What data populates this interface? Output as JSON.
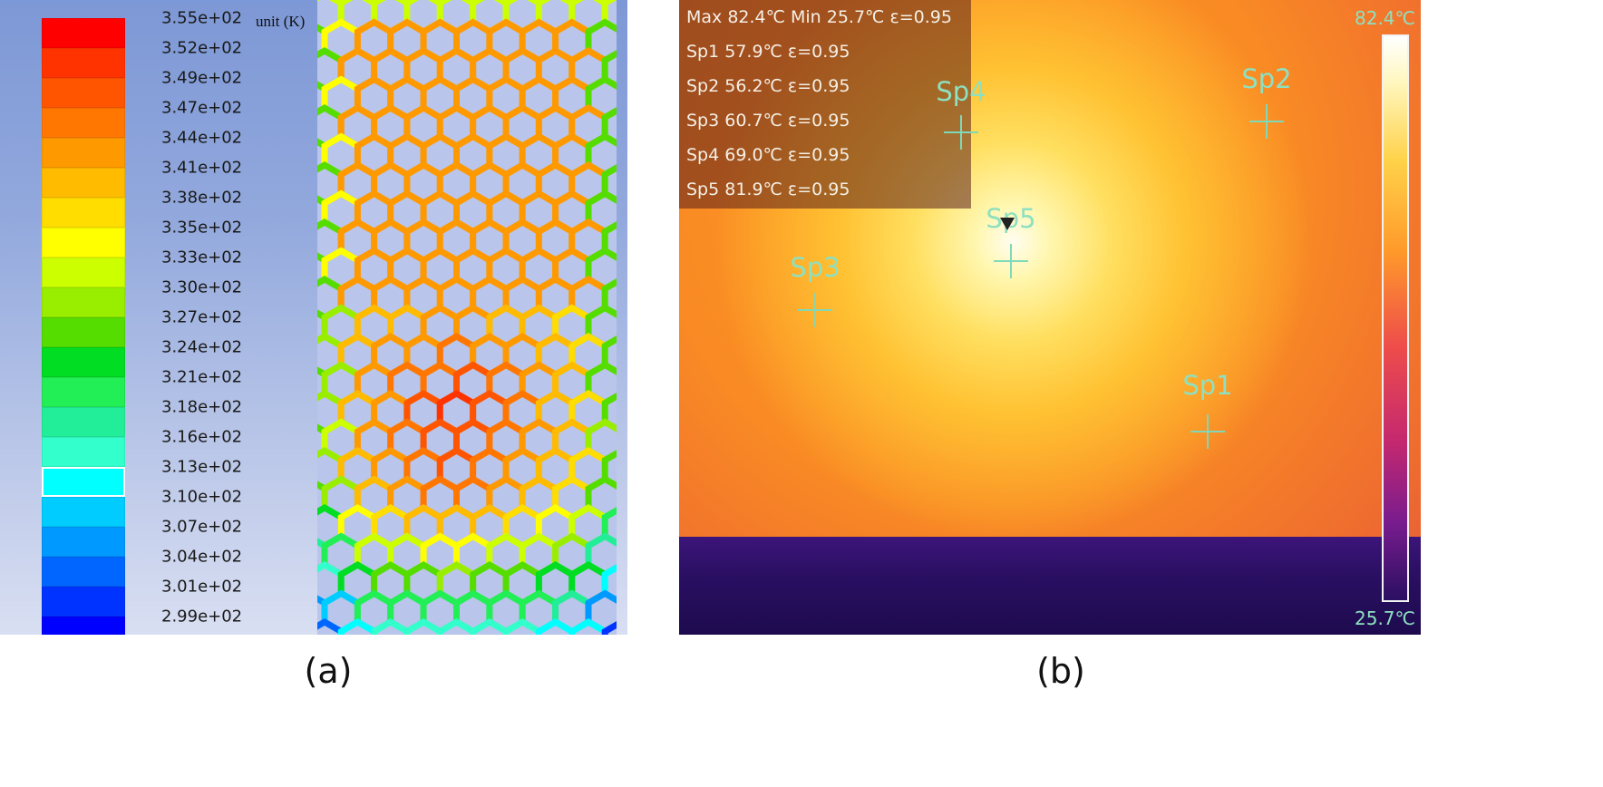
{
  "panel_a": {
    "unit_label": "unit (K)",
    "colorbar_labels": [
      "3.55e+02",
      "3.52e+02",
      "3.49e+02",
      "3.47e+02",
      "3.44e+02",
      "3.41e+02",
      "3.38e+02",
      "3.35e+02",
      "3.33e+02",
      "3.30e+02",
      "3.27e+02",
      "3.24e+02",
      "3.21e+02",
      "3.18e+02",
      "3.16e+02",
      "3.13e+02",
      "3.10e+02",
      "3.07e+02",
      "3.04e+02",
      "3.01e+02",
      "2.99e+02"
    ],
    "colorbar_colors": [
      "#ff0000",
      "#ff3300",
      "#ff5500",
      "#ff7700",
      "#ff9900",
      "#ffbb00",
      "#ffdd00",
      "#ffff00",
      "#ccff00",
      "#99ee00",
      "#55dd00",
      "#00dd22",
      "#22ee55",
      "#22ee99",
      "#33ffcc",
      "#00ffff",
      "#00ccff",
      "#0099ff",
      "#0066ff",
      "#0033ff",
      "#0000ff"
    ],
    "highlighted_band": 15,
    "caption": "(a)"
  },
  "panel_b": {
    "info_lines": [
      "Max 82.4℃ Min 25.7℃ ε=0.95",
      "Sp1 57.9℃  ε=0.95",
      "Sp2 56.2℃  ε=0.95",
      "Sp3 60.7℃  ε=0.95",
      "Sp4 69.0℃  ε=0.95",
      "Sp5 81.9℃  ε=0.95"
    ],
    "spots": [
      {
        "name": "Sp1"
      },
      {
        "name": "Sp2"
      },
      {
        "name": "Sp3"
      },
      {
        "name": "Sp4"
      },
      {
        "name": "Sp5"
      }
    ],
    "scale_max": "82.4℃",
    "scale_min": "25.7℃",
    "caption": "(b)"
  }
}
